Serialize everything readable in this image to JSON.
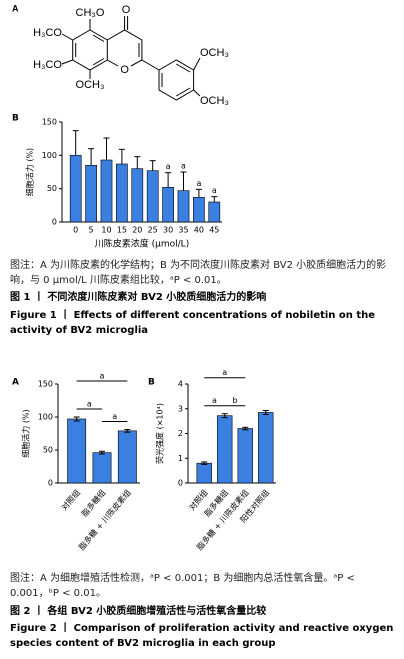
{
  "structure": {
    "panel": "A",
    "labels": [
      "CH₃O",
      "O",
      "H₃CO",
      "H₃CO",
      "O",
      "OCH₃",
      "OCH₃",
      "OCH₃"
    ]
  },
  "chart_data": [
    {
      "type": "bar",
      "panel": "B",
      "y_label": "细胞活力 (%)",
      "x_label": "川陈皮素浓度 (μmol/L)",
      "categories": [
        "0",
        "5",
        "10",
        "15",
        "20",
        "25",
        "30",
        "35",
        "40",
        "45"
      ],
      "values": [
        100,
        85,
        93,
        87,
        80,
        77,
        52,
        47,
        37,
        30
      ],
      "errors": [
        37,
        25,
        33,
        22,
        18,
        15,
        22,
        28,
        12,
        8
      ],
      "color": "#3b7fe0",
      "ylim": [
        0,
        150
      ],
      "yticks": [
        0,
        50,
        100,
        150
      ],
      "error_direction": "up",
      "annotations": [
        {
          "text": "a",
          "category": "30"
        },
        {
          "text": "a",
          "category": "35"
        },
        {
          "text": "a",
          "category": "40"
        },
        {
          "text": "a",
          "category": "45"
        }
      ]
    },
    {
      "type": "bar",
      "panel": "A",
      "y_label": "细胞活力 (%)",
      "categories": [
        "对照组",
        "脂多糖组",
        "脂多糖 + 川陈皮素组"
      ],
      "values": [
        97,
        46,
        79
      ],
      "errors": [
        3,
        2,
        2
      ],
      "color": "#3b7fe0",
      "ylim": [
        0,
        150
      ],
      "yticks": [
        0,
        50,
        100,
        150
      ],
      "error_direction": "both",
      "brackets": [
        {
          "text": "a",
          "between": [
            "对照组",
            "脂多糖组"
          ]
        },
        {
          "text": "a",
          "between": [
            "脂多糖组",
            "脂多糖 + 川陈皮素组"
          ]
        },
        {
          "text": "a",
          "between": [
            "对照组",
            "脂多糖 + 川陈皮素组"
          ]
        }
      ]
    },
    {
      "type": "bar",
      "panel": "B",
      "y_label": "荧光强度 (×10⁴)",
      "categories": [
        "对照组",
        "脂多糖组",
        "脂多糖 + 川陈皮素组",
        "阳性对照组"
      ],
      "values": [
        0.8,
        2.72,
        2.2,
        2.85
      ],
      "errors": [
        0.05,
        0.08,
        0.05,
        0.08
      ],
      "color": "#3b7fe0",
      "ylim": [
        0,
        4
      ],
      "yticks": [
        0,
        1,
        2,
        3,
        4
      ],
      "error_direction": "both",
      "brackets": [
        {
          "text": "a",
          "between": [
            "对照组",
            "脂多糖组"
          ]
        },
        {
          "text": "b",
          "between": [
            "脂多糖组",
            "脂多糖 + 川陈皮素组"
          ]
        },
        {
          "text": "a",
          "between": [
            "对照组",
            "脂多糖 + 川陈皮素组"
          ]
        }
      ]
    }
  ],
  "figure1": {
    "note": "图注：A 为川陈皮素的化学结构；B 为不同浓度川陈皮素对 BV2 小胶质细胞活力的影响，与 0 μmol/L 川陈皮素组比较，ᵃP < 0.01。",
    "title_zh": "图 1 丨 不同浓度川陈皮素对 BV2 小胶质细胞活力的影响",
    "title_en": "Figure 1 丨 Effects of different concentrations of nobiletin on the activity of BV2 microglia"
  },
  "figure2": {
    "note": "图注：A 为细胞增殖活性检测，ᵃP < 0.001；B 为细胞内总活性氧含量。ᵃP < 0.001，ᵇP < 0.01。",
    "title_zh": "图 2 丨 各组 BV2 小胶质细胞增殖活性与活性氧含量比较",
    "title_en": "Figure 2 丨 Comparison of proliferation activity and reactive oxygen species content of BV2 microglia in each group"
  }
}
